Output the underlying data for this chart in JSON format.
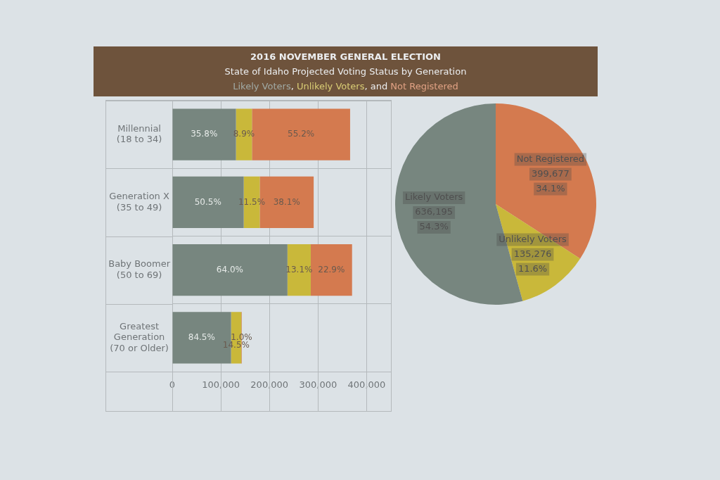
{
  "chart_data": [
    {
      "type": "bar",
      "title": "2016 NOVEMBER GENERAL ELECTION",
      "subtitle": "State of Idaho Projected Voting Status by Generation",
      "legend": "top",
      "orientation": "horizontal",
      "stacked": true,
      "grid": true,
      "categories": [
        "Millennial\n(18 to 34)",
        "Generation X\n(35 to 49)",
        "Baby Boomer\n(50 to 69)",
        "Greatest\nGeneration\n(70 or Older)"
      ],
      "series": [
        {
          "name": "Likely Voters",
          "color": "#77867f",
          "values": [
            131000,
            147000,
            237000,
            121000
          ]
        },
        {
          "name": "Unlikely Voters",
          "color": "#c9b83a",
          "values": [
            33000,
            33000,
            48000,
            21000
          ]
        },
        {
          "name": "Not Registered",
          "color": "#d47a4f",
          "values": [
            202000,
            111000,
            85000,
            1000
          ]
        }
      ],
      "xlim": [
        0,
        450000
      ],
      "xticks": [
        0,
        {
          "value": 100000,
          "label": "100,000"
        },
        {
          "value": 200000,
          "label": "200,000"
        },
        {
          "value": 300000,
          "label": "300,000"
        },
        {
          "value": 400000,
          "label": "400,000"
        }
      ],
      "annotations": [
        ",",
        ", and",
        {
          "text": "35.8%",
          "x": 65500,
          "y": "Millennial\n(18 to 34)"
        },
        {
          "text": "8.9%",
          "x": 147500,
          "y": "Millennial\n(18 to 34)"
        },
        {
          "text": "55.2%",
          "x": 265000,
          "y": "Millennial\n(18 to 34)"
        },
        {
          "text": "50.5%",
          "x": 73500,
          "y": "Generation X\n(35 to 49)"
        },
        {
          "text": "11.5%",
          "x": 163500,
          "y": "Generation X\n(35 to 49)"
        },
        {
          "text": "38.1%",
          "x": 235500,
          "y": "Generation X\n(35 to 49)"
        },
        {
          "text": "64.0%",
          "x": 118500,
          "y": "Baby Boomer\n(50 to 69)"
        },
        {
          "text": "13.1%",
          "x": 261000,
          "y": "Baby Boomer\n(50 to 69)"
        },
        {
          "text": "22.9%",
          "x": 327500,
          "y": "Baby Boomer\n(50 to 69)"
        },
        {
          "text": "84.5%",
          "x": 60500,
          "y": "Greatest\nGeneration\n(70 or Older)"
        },
        {
          "text": "14.5%",
          "x": 131500,
          "y": "Greatest\nGeneration\n(70 or Older)"
        },
        {
          "text": "1.0%",
          "x": 142500,
          "y": "Greatest\nGeneration\n(70 or Older)"
        }
      ]
    },
    {
      "type": "pie",
      "categories": [
        "Not Registered",
        "Unlikely Voters",
        "Likely Voters"
      ],
      "values": [
        399677,
        135276,
        636195
      ],
      "colors": [
        "#d47a4f",
        "#c9b83a",
        "#77867f"
      ],
      "value_labels": [
        "399,677\n34.1%",
        "135,276\n11.6%",
        "636,195\n54.3%"
      ]
    }
  ]
}
